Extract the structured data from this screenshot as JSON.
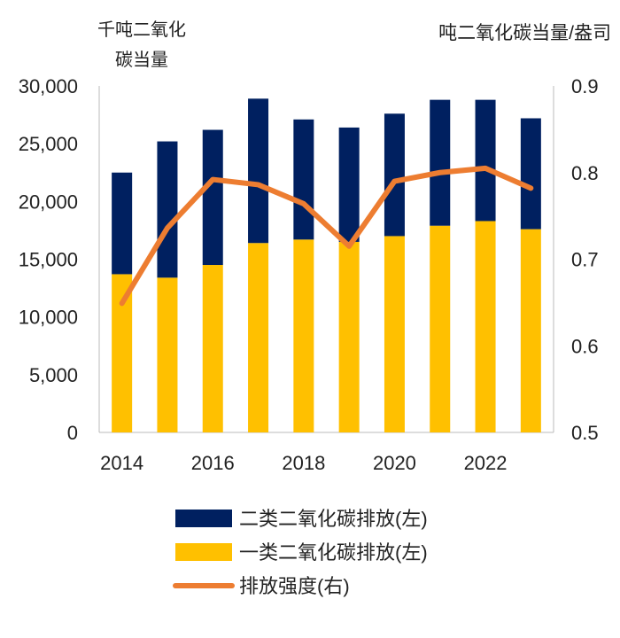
{
  "chart_data": {
    "type": "bar",
    "stacked": true,
    "categories": [
      "2014",
      "2015",
      "2016",
      "2017",
      "2018",
      "2019",
      "2020",
      "2021",
      "2022",
      "2023"
    ],
    "x_tick_labels": [
      "2014",
      "2016",
      "2018",
      "2020",
      "2022"
    ],
    "left_axis": {
      "label_lines": [
        "千吨二氧化",
        "碳当量"
      ],
      "range": [
        0,
        30000
      ],
      "ticks": [
        "0",
        "5,000",
        "10,000",
        "15,000",
        "20,000",
        "25,000",
        "30,000"
      ]
    },
    "right_axis": {
      "label": "吨二氧化碳当量/盎司",
      "range": [
        0.5,
        0.9
      ],
      "ticks": [
        "0.5",
        "0.6",
        "0.7",
        "0.8",
        "0.9"
      ]
    },
    "series": [
      {
        "name": "一类二氧化碳排放(左)",
        "kind": "bar",
        "axis": "left",
        "color": "#FFC000",
        "values": [
          13700,
          13400,
          14500,
          16400,
          16700,
          16500,
          17000,
          17900,
          18300,
          17600
        ]
      },
      {
        "name": "二类二氧化碳排放(左)",
        "kind": "bar",
        "axis": "left",
        "color": "#002060",
        "values": [
          8800,
          11800,
          11700,
          12500,
          10400,
          9900,
          10600,
          10900,
          10500,
          9600
        ]
      },
      {
        "name": "排放强度(右)",
        "kind": "line",
        "axis": "right",
        "color": "#ED7D31",
        "values": [
          0.649,
          0.736,
          0.792,
          0.786,
          0.764,
          0.715,
          0.79,
          0.8,
          0.805,
          0.782
        ]
      }
    ],
    "legend_order": [
      1,
      0,
      2
    ],
    "legend_placement": "bottom",
    "grid": false
  }
}
